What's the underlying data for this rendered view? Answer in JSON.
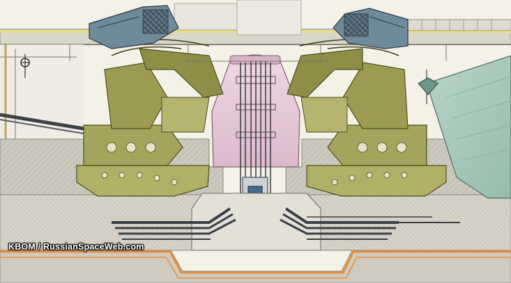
{
  "image": {
    "credit": "KBOM / RussianSpaceWeb.com"
  },
  "colors": {
    "paper": "#f4f1e6",
    "concrete": "#c9c6bd",
    "concrete_hatch": "#a9a59b",
    "olive_machinery": "#a9a860",
    "olive_dark": "#6f6d36",
    "steel_blue": "#6f8a9a",
    "teal_panel": "#a8c6b9",
    "pink_core": "#e7c9da",
    "cables": "#3a3f45",
    "orange_outline": "#e98d3a",
    "yellow_slab": "#e9e4a6"
  },
  "icons": {
    "left_sign": "circle-cross-sign-icon",
    "right_flag": "flag-icon"
  }
}
